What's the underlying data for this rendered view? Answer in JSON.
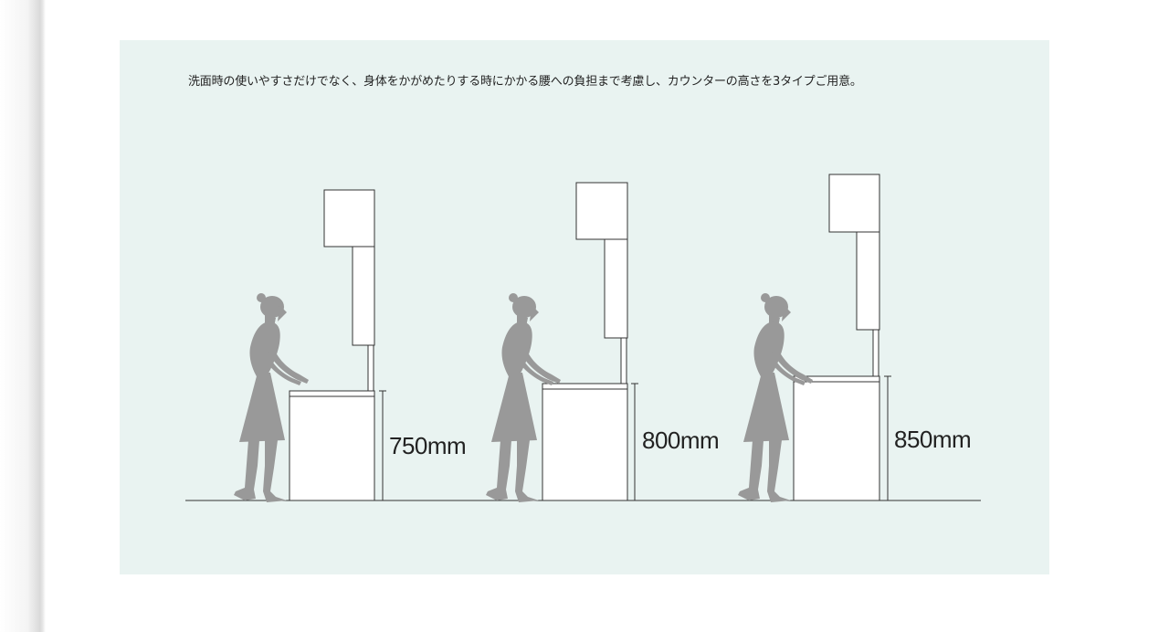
{
  "description": "洗面時の使いやすさだけでなく、身体をかがめたりする時にかかる腰への負担まで考慮し、カウンターの高さを3タイプご用意。",
  "heights": [
    {
      "label": "750mm",
      "value_mm": 750
    },
    {
      "label": "800mm",
      "value_mm": 800
    },
    {
      "label": "850mm",
      "value_mm": 850
    }
  ],
  "colors": {
    "panel_background": "#e9f3f1",
    "silhouette": "#999999",
    "line": "#333333"
  }
}
